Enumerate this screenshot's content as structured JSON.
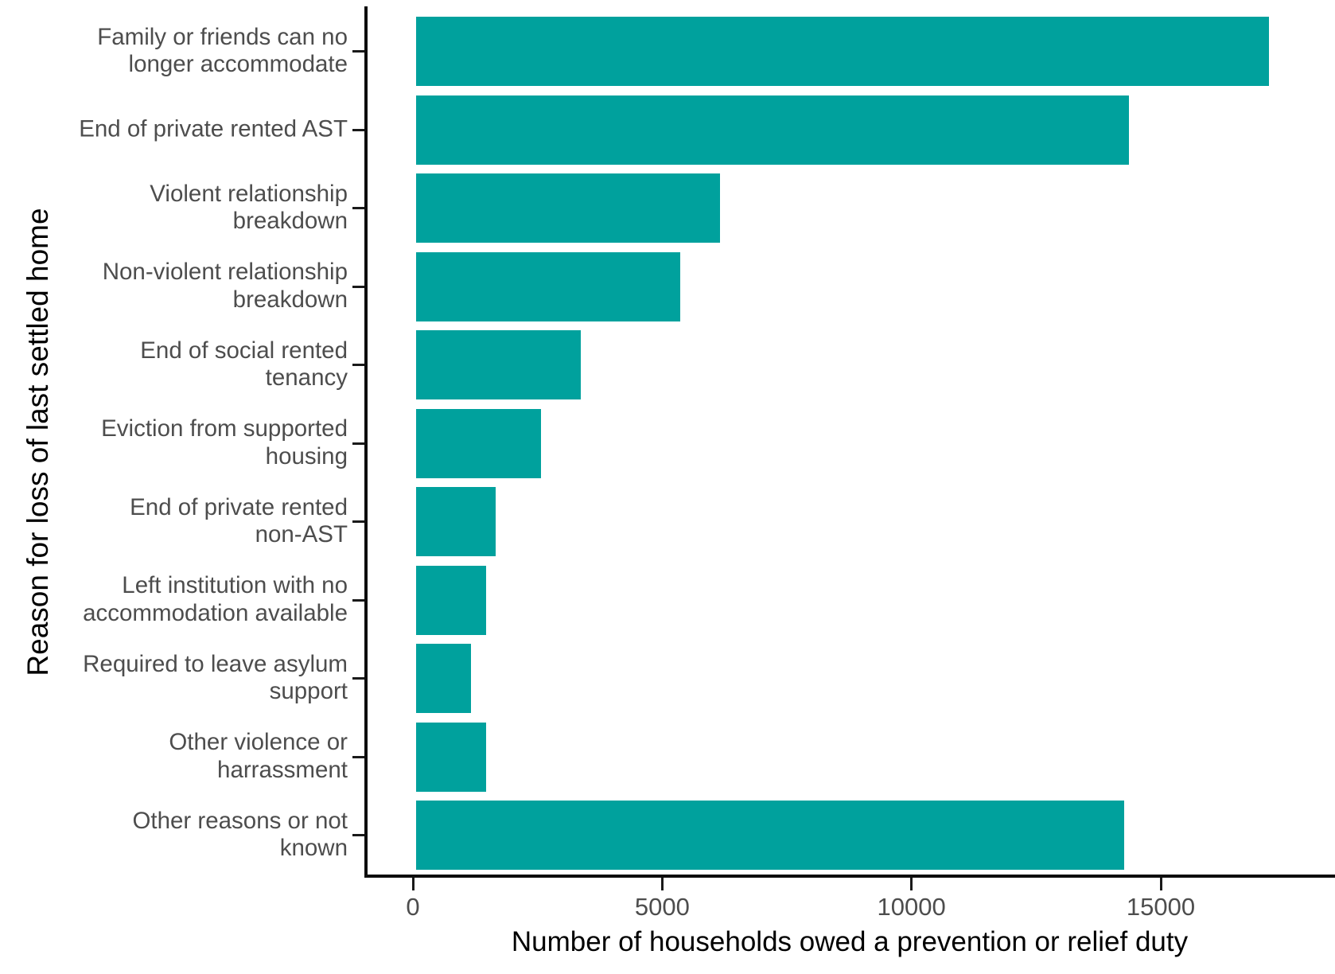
{
  "chart_data": {
    "type": "bar",
    "orientation": "horizontal",
    "title": "",
    "xlabel": "Number of households owed a prevention or relief duty",
    "ylabel": "Reason for loss of last settled home",
    "categories": [
      "Family or friends can no longer accommodate",
      "End of private rented AST",
      "Violent relationship breakdown",
      "Non-violent relationship breakdown",
      "End of social rented tenancy",
      "Eviction from supported housing",
      "End of private rented non-AST",
      "Left institution with no accommodation available",
      "Required to leave asylum support",
      "Other violence or harrassment",
      "Other reasons or not known"
    ],
    "category_label_lines": [
      [
        "Family or friends can no",
        "longer accommodate"
      ],
      [
        "End of private rented AST"
      ],
      [
        "Violent relationship",
        "breakdown"
      ],
      [
        "Non-violent relationship",
        "breakdown"
      ],
      [
        "End of social rented",
        "tenancy"
      ],
      [
        "Eviction from supported",
        "housing"
      ],
      [
        "End of private rented",
        "non-AST"
      ],
      [
        "Left institution with no",
        "accommodation available"
      ],
      [
        "Required to leave asylum",
        "support"
      ],
      [
        "Other violence or",
        "harrassment"
      ],
      [
        "Other reasons or not",
        "known"
      ]
    ],
    "values": [
      17100,
      14300,
      6100,
      5300,
      3300,
      2500,
      1600,
      1400,
      1100,
      1400,
      14200
    ],
    "x_ticks": [
      0,
      5000,
      10000,
      15000
    ],
    "x_tick_labels": [
      "0",
      "5000",
      "10000",
      "15000"
    ],
    "xlim": [
      0,
      18500
    ],
    "grid": false,
    "legend": false,
    "bar_color": "#00A19D",
    "axis_color": "#0D0D0D",
    "tick_label_color": "#4D4D4D",
    "axis_title_color": "#000000"
  }
}
